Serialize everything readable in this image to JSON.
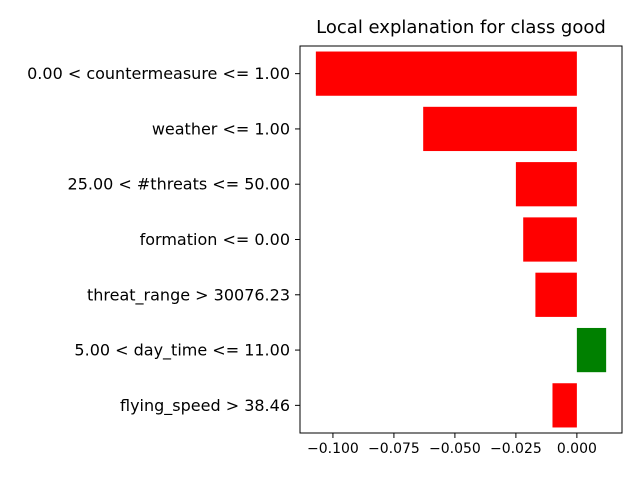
{
  "chart_data": {
    "type": "bar",
    "orientation": "horizontal",
    "title": "Local explanation for class good",
    "xlabel": "",
    "ylabel": "",
    "categories": [
      "0.00 < countermeasure <= 1.00",
      "weather <= 1.00",
      "25.00 < #threats <= 50.00",
      "formation <= 0.00",
      "threat_range > 30076.23",
      "5.00 < day_time <= 11.00",
      "flying_speed > 38.46"
    ],
    "values": [
      -0.107,
      -0.063,
      -0.025,
      -0.022,
      -0.017,
      0.012,
      -0.01
    ],
    "colors": [
      "#ff0000",
      "#ff0000",
      "#ff0000",
      "#ff0000",
      "#ff0000",
      "#008000",
      "#ff0000"
    ],
    "xlim": [
      -0.1135,
      0.0185
    ],
    "xticks": [
      -0.1,
      -0.075,
      -0.05,
      -0.025,
      0.0
    ],
    "xtick_labels": [
      "−0.100",
      "−0.075",
      "−0.050",
      "−0.025",
      "0.000"
    ],
    "grid": false,
    "legend": "none"
  }
}
